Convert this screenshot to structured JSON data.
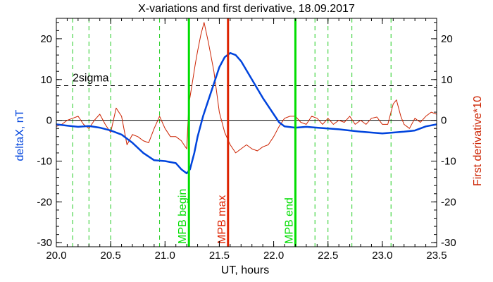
{
  "chart_data": {
    "type": "line",
    "title": "X-variations and first derivative, 18.09.2017",
    "xlabel": "UT, hours",
    "ylabel_left": "deltaX, nT",
    "ylabel_right": "First derivative*10",
    "xlim": [
      20.0,
      23.5
    ],
    "ylim": [
      -31,
      25
    ],
    "x_ticks": [
      "20.0",
      "20.5",
      "21.0",
      "21.5",
      "22.0",
      "22.5",
      "23.0",
      "23.5"
    ],
    "y_ticks": [
      "20",
      "10",
      "0",
      "-10",
      "-20",
      "-30"
    ],
    "colors": {
      "deltaX": "#0044dd",
      "derivative": "#cc2200",
      "mpb": "#00dd00",
      "max": "#dd2200",
      "dashed_green": "#22cc22"
    },
    "series": [
      {
        "key": "deltaX",
        "x": [
          20.0,
          20.1,
          20.2,
          20.3,
          20.4,
          20.5,
          20.6,
          20.7,
          20.8,
          20.9,
          21.0,
          21.1,
          21.15,
          21.2,
          21.23,
          21.27,
          21.3,
          21.35,
          21.4,
          21.45,
          21.5,
          21.55,
          21.6,
          21.65,
          21.7,
          21.8,
          21.9,
          22.0,
          22.05,
          22.1,
          22.2,
          22.3,
          22.4,
          22.5,
          22.6,
          22.7,
          22.8,
          22.9,
          23.0,
          23.1,
          23.2,
          23.3,
          23.4,
          23.5
        ],
        "y": [
          -1,
          -1.3,
          -1.6,
          -1.4,
          -1.8,
          -2.5,
          -3.5,
          -5.5,
          -8,
          -9.8,
          -10,
          -10.5,
          -12,
          -13,
          -12,
          -8,
          -4,
          1,
          5,
          9,
          13,
          15.5,
          16.5,
          16,
          14.5,
          10,
          5.5,
          1.5,
          -0.5,
          -1.5,
          -1.8,
          -1.6,
          -1.8,
          -2.0,
          -2.2,
          -2.5,
          -2.8,
          -3.0,
          -3.2,
          -3.0,
          -2.8,
          -2.5,
          -1.5,
          -1
        ]
      },
      {
        "key": "derivative",
        "x": [
          20.0,
          20.05,
          20.1,
          20.15,
          20.2,
          20.25,
          20.3,
          20.35,
          20.4,
          20.45,
          20.5,
          20.55,
          20.6,
          20.65,
          20.7,
          20.75,
          20.8,
          20.85,
          20.9,
          20.95,
          21.0,
          21.05,
          21.1,
          21.15,
          21.2,
          21.22,
          21.25,
          21.28,
          21.3,
          21.33,
          21.36,
          21.4,
          21.45,
          21.5,
          21.55,
          21.6,
          21.65,
          21.7,
          21.75,
          21.8,
          21.85,
          21.9,
          21.95,
          22.0,
          22.05,
          22.1,
          22.15,
          22.2,
          22.25,
          22.3,
          22.35,
          22.4,
          22.45,
          22.5,
          22.55,
          22.6,
          22.65,
          22.7,
          22.75,
          22.8,
          22.85,
          22.9,
          22.95,
          23.0,
          23.05,
          23.1,
          23.13,
          23.17,
          23.2,
          23.25,
          23.3,
          23.35,
          23.4,
          23.45,
          23.5
        ],
        "y": [
          -1.5,
          -1,
          0,
          0.5,
          1,
          -1,
          -2,
          0,
          1.5,
          -1,
          -3,
          3,
          1,
          -6,
          -3.5,
          -4,
          -5,
          -5.5,
          -2,
          1,
          -2,
          -4,
          -4,
          -5,
          -7,
          4,
          9,
          14,
          17,
          21,
          24,
          19,
          12,
          2,
          -3,
          -6,
          -8,
          -7,
          -6,
          -7,
          -7.5,
          -6.5,
          -6,
          -4,
          -1.5,
          0.5,
          1,
          1,
          -0.5,
          -1,
          1,
          0.5,
          -1,
          0.5,
          -1,
          0,
          -0.5,
          1,
          -1,
          0,
          -1,
          0.5,
          0.8,
          -1,
          -1,
          4,
          5,
          1,
          -1,
          -2,
          0.5,
          -0.5,
          1,
          2,
          1.5
        ]
      }
    ],
    "sigma": {
      "label": "2sigma",
      "value": 8.5
    },
    "zero_line": 0,
    "dashed_verticals": [
      20.15,
      20.3,
      20.5,
      20.95,
      22.38,
      22.5,
      22.72,
      23.08
    ],
    "markers": [
      {
        "label": "MPB begin",
        "x": 21.22,
        "kind": "mpb"
      },
      {
        "label": "MPB max",
        "x": 21.58,
        "kind": "max"
      },
      {
        "label": "MPB end",
        "x": 22.2,
        "kind": "mpb"
      }
    ]
  }
}
